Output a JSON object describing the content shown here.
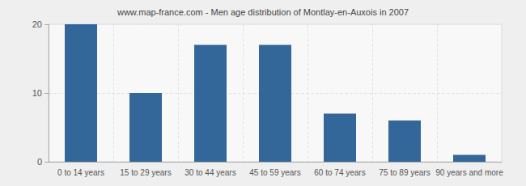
{
  "chart_data": {
    "type": "bar",
    "title": "www.map-france.com - Men age distribution of Montlay-en-Auxois in 2007",
    "categories": [
      "0 to 14 years",
      "15 to 29 years",
      "30 to 44 years",
      "45 to 59 years",
      "60 to 74 years",
      "75 to 89 years",
      "90 years and more"
    ],
    "values": [
      20,
      10,
      17,
      17,
      7,
      6,
      1
    ],
    "color": "#336699",
    "ylim": [
      0,
      20
    ],
    "yticks": [
      0,
      10,
      20
    ],
    "grid": true
  }
}
